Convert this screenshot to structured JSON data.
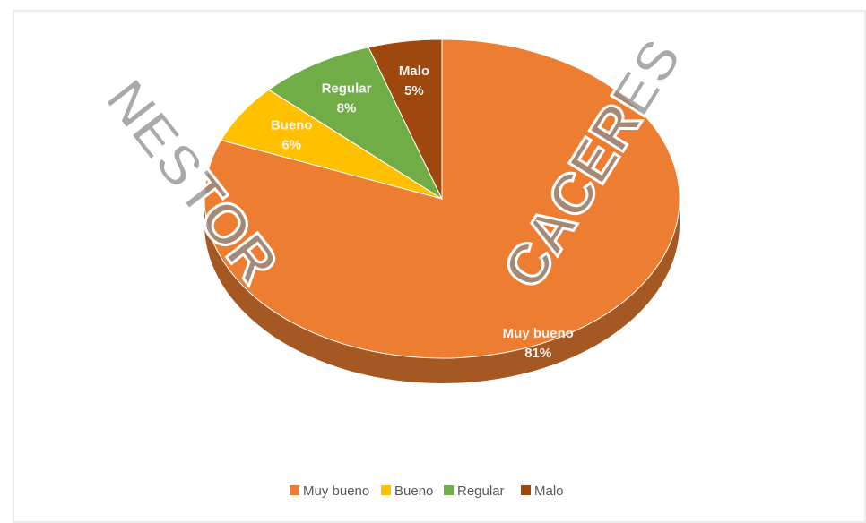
{
  "chart_data": {
    "type": "pie",
    "categories": [
      "Muy bueno",
      "Bueno",
      "Regular",
      "Malo"
    ],
    "values": [
      81,
      6,
      8,
      5
    ],
    "value_labels": [
      "81%",
      "6%",
      "8%",
      "5%"
    ],
    "colors": [
      "#ED7D31",
      "#FFC000",
      "#70AD47",
      "#9E480E"
    ],
    "legend": "bottom",
    "watermark": [
      "NESTOR",
      "CACERES"
    ]
  }
}
